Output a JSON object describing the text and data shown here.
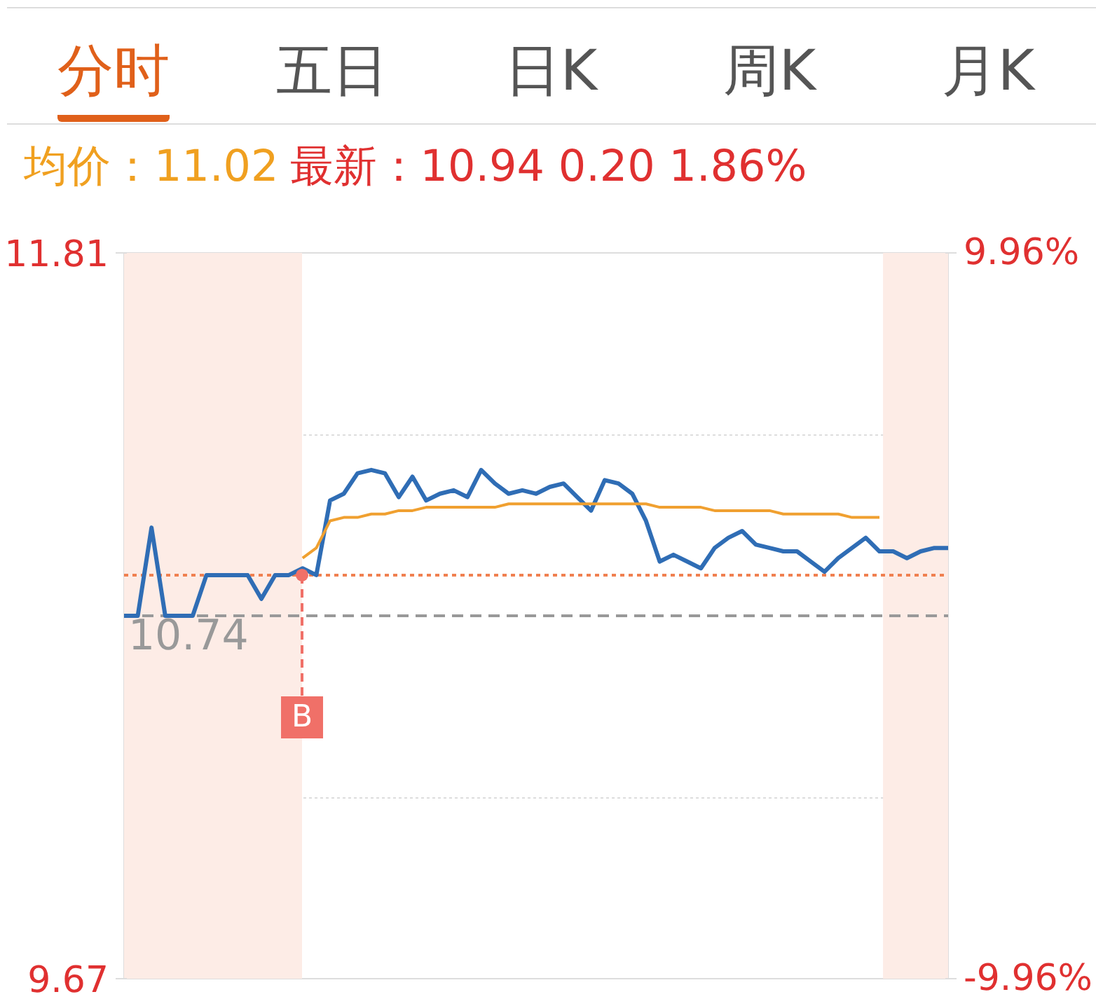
{
  "chart_data": {
    "type": "line",
    "categories": [
      null,
      null,
      null,
      null,
      null,
      null,
      null,
      null,
      null,
      null,
      null,
      null,
      null,
      null,
      null,
      null,
      null,
      null,
      null,
      null,
      null,
      null,
      null,
      null,
      null,
      null,
      null,
      null,
      null,
      null,
      null,
      null,
      null,
      null,
      null,
      null,
      null,
      null,
      null,
      null,
      null,
      null,
      null,
      null,
      null,
      null,
      null,
      null,
      null,
      null,
      null,
      null,
      null,
      null,
      null,
      null,
      null,
      null,
      null,
      null,
      null
    ],
    "series": [
      {
        "color": "#2f6db5",
        "values": [
          10.74,
          10.74,
          11.0,
          10.74,
          10.74,
          10.74,
          10.86,
          10.86,
          10.86,
          10.86,
          10.79,
          10.86,
          10.86,
          10.88,
          10.86,
          11.08,
          11.1,
          11.16,
          11.17,
          11.16,
          11.09,
          11.15,
          11.08,
          11.1,
          11.11,
          11.09,
          11.17,
          11.13,
          11.1,
          11.11,
          11.1,
          11.12,
          11.13,
          11.09,
          11.05,
          11.14,
          11.13,
          11.1,
          11.02,
          10.9,
          10.92,
          10.9,
          10.88,
          10.94,
          10.97,
          10.99,
          10.95,
          10.94,
          10.93,
          10.93,
          10.9,
          10.87,
          10.91,
          10.94,
          10.97,
          10.93,
          10.93,
          10.91,
          10.93,
          10.94,
          10.94
        ]
      },
      {
        "color": "#f0a030",
        "values": [
          null,
          null,
          null,
          null,
          null,
          null,
          null,
          null,
          null,
          null,
          null,
          null,
          null,
          10.91,
          10.94,
          11.02,
          11.03,
          11.03,
          11.04,
          11.04,
          11.05,
          11.05,
          11.06,
          11.06,
          11.06,
          11.06,
          11.06,
          11.06,
          11.07,
          11.07,
          11.07,
          11.07,
          11.07,
          11.07,
          11.07,
          11.07,
          11.07,
          11.07,
          11.07,
          11.06,
          11.06,
          11.06,
          11.06,
          11.05,
          11.05,
          11.05,
          11.05,
          11.05,
          11.04,
          11.04,
          11.04,
          11.04,
          11.04,
          11.03,
          11.03,
          11.03,
          null,
          null,
          null,
          null,
          null
        ]
      }
    ],
    "ylim": [
      9.67,
      11.81
    ],
    "yticks": [
      11.81,
      {
        "value": 11.275,
        "label": null
      },
      {
        "value": 10.205,
        "label": null
      },
      9.67
    ],
    "y2lim": [
      -9.96,
      9.96
    ],
    "y2ticks": [
      {
        "value": 9.96,
        "label": "9.96%"
      },
      {
        "value": -9.96,
        "label": "-9.96%"
      }
    ],
    "ref_lines": [
      {
        "axis": "y",
        "value": 10.74,
        "label": "10.74",
        "color": "#999999",
        "line_style": "dashed"
      },
      {
        "axis": "y",
        "value": 10.86,
        "color": "#f08050",
        "line_style": "dotted"
      }
    ],
    "grid": "y",
    "annotations": [
      "分时",
      "五日",
      "日K",
      "周K",
      "月K",
      "均价：11.02",
      "最新：10.94  0.20  1.86%",
      "B"
    ]
  }
}
